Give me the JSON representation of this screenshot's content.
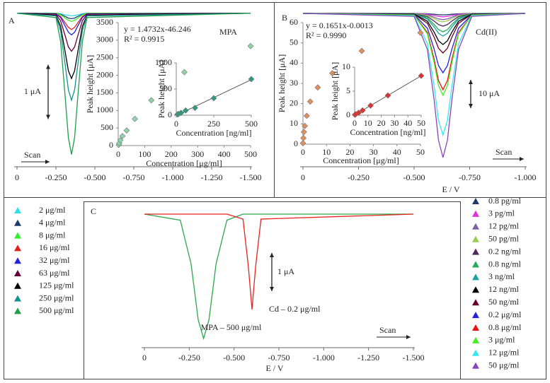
{
  "chart_data": [
    {
      "type": "line",
      "panel": "A",
      "title": "MPA",
      "scan_label": "Scan",
      "scale_bar": {
        "value": 1,
        "label": "1 μA"
      },
      "legend": "bottom-left",
      "xlim": [
        0,
        -1.5
      ],
      "xticks": [
        0,
        {
          "value": -0.25,
          "label": "-0.250"
        },
        {
          "value": -0.5,
          "label": "-0.500"
        },
        {
          "value": -0.75,
          "label": "-0.750"
        },
        {
          "value": -1,
          "label": "-1.000"
        },
        {
          "value": -1.25,
          "label": "-1.250"
        },
        {
          "value": -1.5,
          "label": "-1.500"
        }
      ],
      "ylim": [
        -2.8,
        0.1
      ],
      "x": [
        0,
        -0.25,
        -0.28,
        -0.31,
        -0.33,
        -0.35,
        -0.37,
        -0.39,
        -0.42,
        -0.45,
        -1.5
      ],
      "series": [
        {
          "name": "2 μg/ml",
          "color": "#33e0f0",
          "values": [
            0,
            0,
            -0.01,
            -0.03,
            -0.04,
            -0.05,
            -0.04,
            -0.03,
            -0.01,
            0,
            0
          ]
        },
        {
          "name": "4 μg/ml",
          "color": "#1f3b6e",
          "values": [
            0,
            0,
            -0.02,
            -0.06,
            -0.09,
            -0.1,
            -0.09,
            -0.06,
            -0.02,
            0,
            0
          ]
        },
        {
          "name": "8 μg/ml",
          "color": "#33ee33",
          "values": [
            0,
            0,
            -0.03,
            -0.09,
            -0.13,
            -0.15,
            -0.13,
            -0.09,
            -0.03,
            0,
            0
          ]
        },
        {
          "name": "16 μg/ml",
          "color": "#e02020",
          "values": [
            0,
            -0.01,
            -0.06,
            -0.18,
            -0.26,
            -0.3,
            -0.26,
            -0.18,
            -0.06,
            -0.01,
            0
          ]
        },
        {
          "name": "32 μg/ml",
          "color": "#2222dd",
          "values": [
            0,
            -0.01,
            -0.08,
            -0.24,
            -0.35,
            -0.4,
            -0.35,
            -0.24,
            -0.08,
            -0.01,
            0
          ]
        },
        {
          "name": "63 μg/ml",
          "color": "#66003a",
          "values": [
            0,
            -0.02,
            -0.14,
            -0.42,
            -0.62,
            -0.7,
            -0.62,
            -0.42,
            -0.14,
            -0.02,
            0
          ]
        },
        {
          "name": "125 μg/ml",
          "color": "#000000",
          "values": [
            0,
            -0.04,
            -0.24,
            -0.72,
            -1.06,
            -1.2,
            -1.06,
            -0.72,
            -0.24,
            -0.04,
            0
          ]
        },
        {
          "name": "250 μg/ml",
          "color": "#15918f",
          "values": [
            0,
            -0.05,
            -0.32,
            -0.96,
            -1.41,
            -1.6,
            -1.41,
            -0.96,
            -0.32,
            -0.05,
            0
          ]
        },
        {
          "name": "500 μg/ml",
          "color": "#1e9e4a",
          "values": [
            0,
            -0.08,
            -0.52,
            -1.56,
            -2.29,
            -2.6,
            -2.29,
            -1.56,
            -0.52,
            -0.08,
            0
          ]
        }
      ]
    },
    {
      "type": "scatter",
      "xlabel": "Concentration [μg/ml]",
      "ylabel": "Peak height [μA]",
      "equation": "y = 1.4732x-46.246",
      "r2": "R² = 0.9915",
      "xlim": [
        0,
        500
      ],
      "ylim": [
        0,
        3500
      ],
      "xticks": [
        0,
        100,
        200,
        300,
        400,
        500
      ],
      "yticks": [
        0,
        500,
        1000,
        1500,
        2000,
        2500,
        3000,
        3500
      ],
      "x": [
        2,
        4,
        8,
        16,
        32,
        63,
        125,
        250,
        500
      ],
      "values": [
        20,
        70,
        150,
        270,
        430,
        760,
        1290,
        2090,
        2830
      ],
      "color": "#8fd4a8"
    },
    {
      "type": "scatter",
      "xlabel": "Concentration [ng/ml]",
      "ylabel": "Peak height [μA]",
      "trendline": true,
      "xlim": [
        0,
        500
      ],
      "ylim": [
        0,
        1000
      ],
      "xticks": [
        0,
        250,
        500
      ],
      "yticks": [
        0,
        500,
        1000
      ],
      "x": [
        8,
        16,
        32,
        63,
        125,
        250,
        500
      ],
      "values": [
        15,
        25,
        45,
        90,
        140,
        325,
        690
      ],
      "color": "#2f9a80"
    },
    {
      "type": "line",
      "panel": "B",
      "title": "Cd(II)",
      "xlabel": "E / V",
      "scan_label": "Scan",
      "scale_bar": {
        "value": 10,
        "label": "10 μA"
      },
      "legend": "bottom-right",
      "xlim": [
        0,
        -1
      ],
      "xticks": [
        0,
        {
          "value": -0.25,
          "label": "-0.250"
        },
        {
          "value": -0.5,
          "label": "-0.500"
        },
        {
          "value": -0.75,
          "label": "-0.750"
        },
        {
          "value": -1,
          "label": "-1.000"
        }
      ],
      "ylim": [
        -53,
        1
      ],
      "x": [
        0,
        -0.5,
        -0.56,
        -0.59,
        -0.61,
        -0.63,
        -0.65,
        -0.67,
        -0.7,
        -0.76,
        -1
      ],
      "series": [
        {
          "name": "0.8 pg/ml",
          "color": "#1f3b6e",
          "values": [
            0,
            -0.01,
            -0.13,
            -0.3,
            -0.44,
            -0.5,
            -0.44,
            -0.3,
            -0.13,
            -0.01,
            0
          ]
        },
        {
          "name": "3 pg/ml",
          "color": "#dd33dd",
          "values": [
            0,
            -0.02,
            -0.3,
            -0.72,
            -1.06,
            -1.2,
            -1.06,
            -0.72,
            -0.3,
            -0.02,
            0
          ]
        },
        {
          "name": "12 pg/ml",
          "color": "#7d5fa8",
          "values": [
            0,
            -0.04,
            -0.55,
            -1.32,
            -1.94,
            -2.2,
            -1.94,
            -1.32,
            -0.55,
            -0.04,
            0
          ]
        },
        {
          "name": "50 pg/ml",
          "color": "#99cc55",
          "values": [
            0,
            -0.06,
            -0.75,
            -1.8,
            -2.64,
            -3,
            -2.64,
            -1.8,
            -0.75,
            -0.06,
            0
          ]
        },
        {
          "name": "0.2 ng/ml",
          "color": "#4b2a5e",
          "values": [
            0,
            -0.09,
            -1.13,
            -2.7,
            -3.96,
            -4.5,
            -3.96,
            -2.7,
            -1.13,
            -0.09,
            0
          ]
        },
        {
          "name": "0.8 ng/ml",
          "color": "#22aa55",
          "values": [
            0,
            -0.13,
            -1.63,
            -3.9,
            -5.72,
            -6.5,
            -5.72,
            -3.9,
            -1.63,
            -0.13,
            0
          ]
        },
        {
          "name": "3 ng/ml",
          "color": "#1aa0a0",
          "values": [
            0,
            -0.16,
            -2,
            -4.8,
            -7.04,
            -8,
            -7.04,
            -4.8,
            -2,
            -0.16,
            0
          ]
        },
        {
          "name": "12 ng/ml",
          "color": "#000000",
          "values": [
            0,
            -0.22,
            -2.75,
            -6.6,
            -9.68,
            -11,
            -9.68,
            -6.6,
            -2.75,
            -0.22,
            0
          ]
        },
        {
          "name": "50 ng/ml",
          "color": "#66002a",
          "values": [
            0,
            -0.28,
            -3.5,
            -8.4,
            -12.32,
            -14,
            -12.32,
            -8.4,
            -3.5,
            -0.28,
            0
          ]
        },
        {
          "name": "0.2 μg/ml",
          "color": "#2222dd",
          "values": [
            0,
            -0.42,
            -5.25,
            -12.6,
            -18.48,
            -21,
            -18.48,
            -12.6,
            -5.25,
            -0.42,
            0
          ]
        },
        {
          "name": "0.8 μg/ml",
          "color": "#ee1111",
          "values": [
            0,
            -0.54,
            -6.75,
            -16.2,
            -23.76,
            -27,
            -23.76,
            -16.2,
            -6.75,
            -0.54,
            0
          ]
        },
        {
          "name": "3 μg/ml",
          "color": "#44ee22",
          "values": [
            0,
            -0.58,
            -7.25,
            -17.4,
            -25.52,
            -29,
            -25.52,
            -17.4,
            -7.25,
            -0.58,
            0
          ]
        },
        {
          "name": "12 μg/ml",
          "color": "#33e8f0",
          "values": [
            0,
            -0.86,
            -10.75,
            -25.8,
            -37.84,
            -43,
            -37.84,
            -25.8,
            -10.75,
            -0.86,
            0
          ]
        },
        {
          "name": "50 μg/ml",
          "color": "#8a44b8",
          "values": [
            0,
            -1.02,
            -12.75,
            -30.6,
            -44.88,
            -51,
            -44.88,
            -30.6,
            -12.75,
            -1.02,
            0
          ]
        }
      ]
    },
    {
      "type": "scatter",
      "xlabel": "Concentration [μg/ml]",
      "ylabel": "Peak height [μA]",
      "equation": "y = 0.1651x-0.0013",
      "r2": "R² = 0.9990",
      "xlim": [
        0,
        50
      ],
      "ylim": [
        0,
        60
      ],
      "xticks": [
        0,
        10,
        20,
        30,
        40,
        50
      ],
      "yticks": [
        0,
        10,
        20,
        30,
        40,
        50,
        60
      ],
      "x": [
        0,
        0.2,
        0.4,
        0.8,
        1.6,
        3.1,
        6.3,
        12.5,
        25,
        50
      ],
      "values": [
        0.5,
        3,
        6,
        9,
        14,
        21,
        28,
        35,
        46,
        55
      ],
      "color": "#e0905a"
    },
    {
      "type": "scatter",
      "xlabel": "Concentration [ng/ml]",
      "ylabel": "Peak height [μA]",
      "trendline": true,
      "xlim": [
        0,
        50
      ],
      "ylim": [
        0,
        10
      ],
      "xticks": [
        0,
        10,
        20,
        30,
        40,
        50
      ],
      "yticks": [
        0,
        5,
        10
      ],
      "x": [
        0.2,
        0.8,
        3,
        6,
        12,
        25,
        50
      ],
      "values": [
        0.1,
        0.2,
        0.5,
        1,
        2,
        4.1,
        8.2
      ],
      "color": "#e03030"
    },
    {
      "type": "line",
      "panel": "C",
      "xlabel": "E / V",
      "scan_label": "Scan",
      "scale_bar": {
        "value": 1,
        "label": "1 μA"
      },
      "legend": "inline",
      "xlim": [
        0,
        -1.5
      ],
      "xticks": [
        0,
        {
          "value": -0.25,
          "label": "-0.250"
        },
        {
          "value": -0.5,
          "label": "-0.500"
        },
        {
          "value": -0.75,
          "label": "-0.750"
        },
        {
          "value": -1,
          "label": "-1.000"
        },
        {
          "value": -1.25,
          "label": "-1.250"
        },
        {
          "value": -1.5,
          "label": "-1.500"
        }
      ],
      "ylim": [
        -3.4,
        0.1
      ],
      "x": [
        0,
        -0.2,
        -0.26,
        -0.3,
        -0.33,
        -0.36,
        -0.4,
        -0.46,
        -0.55,
        -0.58,
        -0.6,
        -0.62,
        -0.65,
        -1.5
      ],
      "series": [
        {
          "name": "MPA – 500 μg/ml",
          "color": "#2aa84a",
          "values": [
            0,
            -0.16,
            -1.3,
            -2.77,
            -3.26,
            -2.77,
            -1.3,
            -0.16,
            0,
            0,
            0,
            0,
            0,
            0
          ]
        },
        {
          "name": "Cd – 0.2 μg/ml",
          "color": "#e8231f",
          "values": [
            0,
            0,
            0,
            0,
            0,
            0,
            0,
            0,
            -0.13,
            -1.38,
            -2.5,
            -1.38,
            -0.13,
            0
          ]
        }
      ]
    }
  ]
}
